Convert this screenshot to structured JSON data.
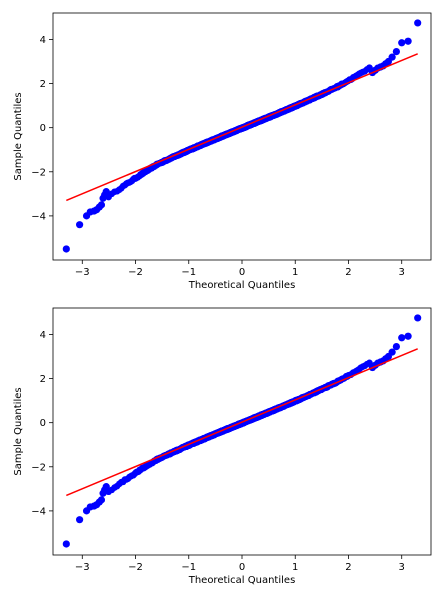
{
  "chart_data": [
    {
      "type": "scatter",
      "title": "",
      "xlabel": "Theoretical Quantiles",
      "ylabel": "Sample Quantiles",
      "xlim": [
        -3.55,
        3.55
      ],
      "ylim": [
        -6.0,
        5.2
      ],
      "xticks": [
        -3,
        -2,
        -1,
        0,
        1,
        2,
        3
      ],
      "yticks": [
        -4,
        -2,
        0,
        2,
        4
      ],
      "xtick_labels": [
        "−3",
        "−2",
        "−1",
        "0",
        "1",
        "2",
        "3"
      ],
      "ytick_labels": [
        "−4",
        "−2",
        "0",
        "2",
        "4"
      ],
      "grid": false,
      "point_color": "#0000ff",
      "line_color": "#ff0000",
      "reference_line": {
        "x": [
          -3.3,
          3.3
        ],
        "y": [
          -3.3,
          3.35
        ]
      },
      "tail_points": {
        "x": [
          -3.3,
          -3.05,
          -2.92,
          -2.85,
          -2.78,
          -2.73,
          -2.68,
          -2.64,
          -2.61,
          -2.58,
          -2.55,
          2.45,
          2.5,
          2.55,
          2.6,
          2.65,
          2.7,
          2.75,
          2.82,
          2.9,
          3.0,
          3.12,
          3.3
        ],
        "y": [
          -5.5,
          -4.4,
          -4.0,
          -3.82,
          -3.78,
          -3.72,
          -3.6,
          -3.5,
          -3.2,
          -3.05,
          -2.9,
          2.5,
          2.6,
          2.7,
          2.75,
          2.8,
          2.9,
          3.0,
          3.2,
          3.45,
          3.85,
          3.92,
          4.75
        ]
      }
    },
    {
      "type": "scatter",
      "title": "",
      "xlabel": "Theoretical Quantiles",
      "ylabel": "Sample Quantiles",
      "xlim": [
        -3.55,
        3.55
      ],
      "ylim": [
        -6.0,
        5.2
      ],
      "xticks": [
        -3,
        -2,
        -1,
        0,
        1,
        2,
        3
      ],
      "yticks": [
        -4,
        -2,
        0,
        2,
        4
      ],
      "xtick_labels": [
        "−3",
        "−2",
        "−1",
        "0",
        "1",
        "2",
        "3"
      ],
      "ytick_labels": [
        "−4",
        "−2",
        "0",
        "2",
        "4"
      ],
      "grid": false,
      "point_color": "#0000ff",
      "line_color": "#ff0000",
      "reference_line": {
        "x": [
          -3.3,
          3.3
        ],
        "y": [
          -3.3,
          3.35
        ]
      },
      "tail_points": {
        "x": [
          -3.3,
          -3.05,
          -2.92,
          -2.85,
          -2.78,
          -2.73,
          -2.68,
          -2.64,
          -2.61,
          -2.58,
          -2.55,
          2.45,
          2.5,
          2.55,
          2.6,
          2.65,
          2.7,
          2.75,
          2.82,
          2.9,
          3.0,
          3.12,
          3.3
        ],
        "y": [
          -5.5,
          -4.4,
          -4.0,
          -3.82,
          -3.78,
          -3.72,
          -3.6,
          -3.5,
          -3.2,
          -3.05,
          -2.9,
          2.5,
          2.6,
          2.7,
          2.75,
          2.8,
          2.9,
          3.0,
          3.2,
          3.45,
          3.85,
          3.92,
          4.75
        ]
      }
    }
  ]
}
